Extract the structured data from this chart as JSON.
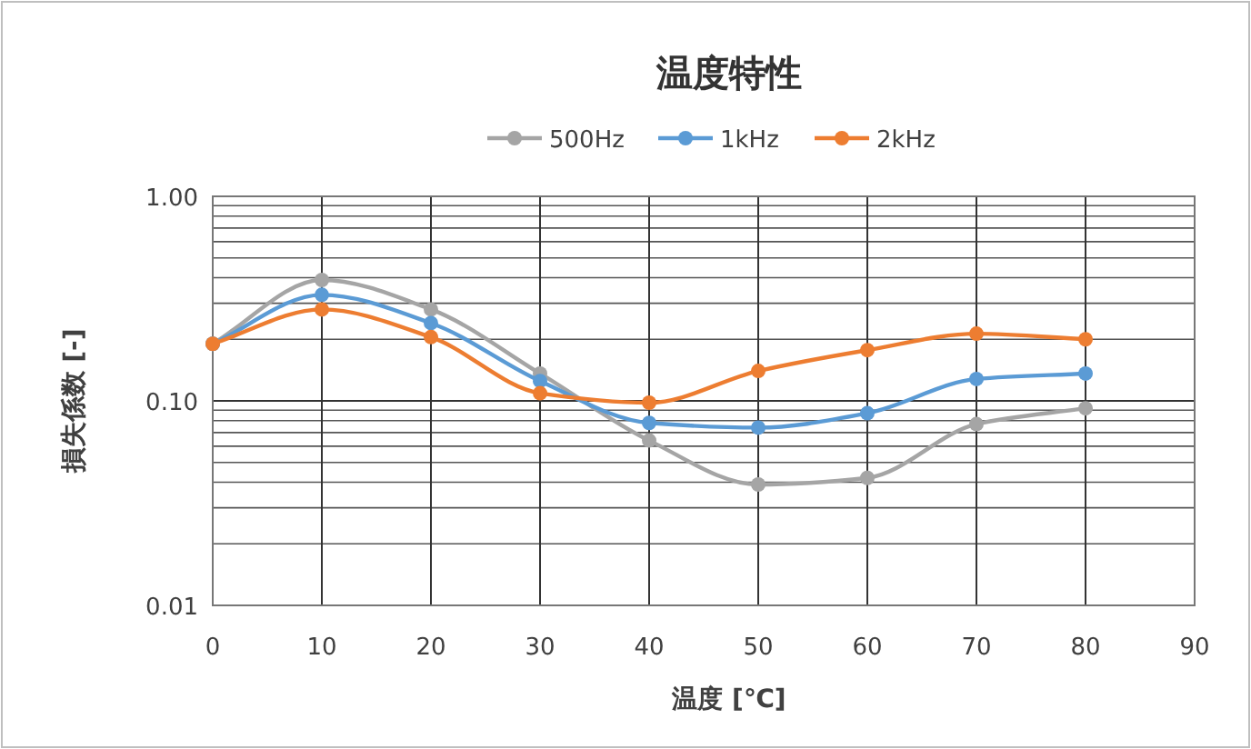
{
  "chart_data": {
    "type": "line",
    "title": "温度特性",
    "xlabel": "温度 [℃]",
    "ylabel": "損失係数 [-]",
    "x": [
      0,
      10,
      20,
      30,
      40,
      50,
      60,
      70,
      80
    ],
    "series": [
      {
        "name": "500Hz",
        "color": "#a5a5a5",
        "values": [
          0.19,
          0.39,
          0.28,
          0.136,
          0.064,
          0.039,
          0.042,
          0.077,
          0.092
        ]
      },
      {
        "name": "1kHz",
        "color": "#5b9bd5",
        "values": [
          0.19,
          0.33,
          0.24,
          0.125,
          0.078,
          0.074,
          0.087,
          0.128,
          0.136
        ]
      },
      {
        "name": "2kHz",
        "color": "#ed7d31",
        "values": [
          0.19,
          0.28,
          0.205,
          0.109,
          0.098,
          0.14,
          0.177,
          0.213,
          0.2
        ]
      }
    ],
    "xlim": [
      0,
      90
    ],
    "xticks": [
      0,
      10,
      20,
      30,
      40,
      50,
      60,
      70,
      80,
      90
    ],
    "ylim": [
      0.01,
      1
    ],
    "yticks": [
      {
        "value": 0.01,
        "label": "0.01"
      },
      {
        "value": 0.1,
        "label": "0.10"
      },
      {
        "value": 1,
        "label": "1.00"
      }
    ],
    "log": "y",
    "grid": true,
    "legend": "top",
    "marker": "circle",
    "line_style": "solid"
  }
}
